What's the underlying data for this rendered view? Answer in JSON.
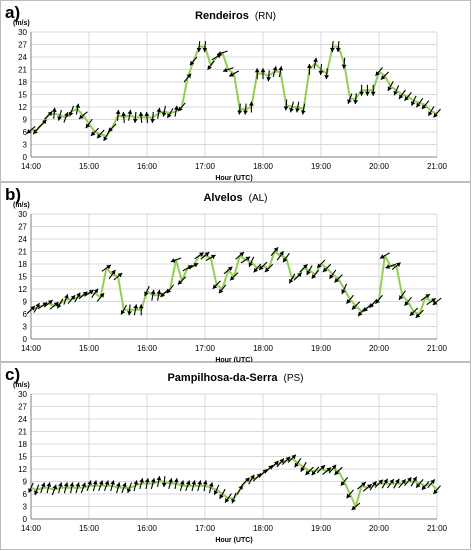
{
  "colors": {
    "line": "#92d050",
    "arrow": "#000000",
    "grid": "#d9d9d9",
    "axis": "#808080"
  },
  "chart_data": [
    {
      "type": "line",
      "panel_label": "a)",
      "title": "Rendeiros",
      "station_code": "(RN)",
      "xlabel": "Hour (UTC)",
      "ylabel": "(m/s)",
      "xlim": [
        14.0,
        21.0
      ],
      "ylim": [
        0,
        30
      ],
      "yticks": [
        0,
        3,
        6,
        9,
        12,
        15,
        18,
        21,
        24,
        27,
        30
      ],
      "xtick_labels": [
        "14:00",
        "15:00",
        "16:00",
        "17:00",
        "18:00",
        "19:00",
        "20:00",
        "21:00"
      ],
      "grid": true,
      "series": [
        {
          "x": [
            14.0,
            14.1,
            14.2,
            14.3,
            14.4,
            14.5,
            14.6,
            14.7,
            14.8,
            14.9,
            15.0,
            15.1,
            15.2,
            15.3,
            15.4,
            15.5,
            15.6,
            15.7,
            15.8,
            15.9,
            16.0,
            16.1,
            16.2,
            16.3,
            16.4,
            16.5,
            16.6,
            16.7,
            16.8,
            16.9,
            17.0,
            17.1,
            17.2,
            17.3,
            17.4,
            17.5,
            17.6,
            17.7,
            17.8,
            17.9,
            18.0,
            18.1,
            18.2,
            18.3,
            18.4,
            18.5,
            18.6,
            18.7,
            18.8,
            18.9,
            19.0,
            19.1,
            19.2,
            19.3,
            19.4,
            19.5,
            19.6,
            19.7,
            19.8,
            19.9,
            20.0,
            20.1,
            20.2,
            20.3,
            20.4,
            20.5,
            20.6,
            20.7,
            20.8,
            20.9,
            21.0
          ],
          "values": [
            6.5,
            6.5,
            8,
            10,
            10.5,
            10,
            9.5,
            11,
            11.5,
            10,
            8,
            6,
            5.5,
            5,
            7,
            10,
            9.5,
            10,
            9.5,
            9.5,
            9.5,
            9.5,
            10.5,
            11,
            10.5,
            11,
            12,
            19,
            23,
            26.5,
            26.5,
            22,
            24,
            25,
            21,
            20,
            11.5,
            11.5,
            12,
            20,
            20,
            19.5,
            20.5,
            20.5,
            12.5,
            12,
            12,
            11.5,
            21,
            22.5,
            21,
            20,
            26.5,
            26.5,
            22.5,
            14,
            14,
            16,
            16,
            16,
            20.5,
            19.5,
            17,
            16,
            15,
            14.5,
            13.5,
            13,
            12.5,
            11,
            10.5
          ],
          "arrow_dir_deg": [
            220,
            230,
            45,
            45,
            85,
            255,
            70,
            250,
            80,
            220,
            235,
            225,
            230,
            240,
            225,
            85,
            95,
            80,
            265,
            95,
            95,
            265,
            80,
            260,
            240,
            80,
            230,
            50,
            230,
            265,
            265,
            235,
            30,
            200,
            200,
            210,
            265,
            265,
            90,
            90,
            90,
            265,
            75,
            80,
            265,
            255,
            260,
            260,
            90,
            80,
            265,
            265,
            265,
            265,
            265,
            250,
            265,
            270,
            270,
            270,
            230,
            225,
            240,
            245,
            235,
            230,
            245,
            235,
            230,
            240,
            230
          ]
        }
      ]
    },
    {
      "type": "line",
      "panel_label": "b)",
      "title": "Alvelos",
      "station_code": "(AL)",
      "xlabel": "Hour (UTC)",
      "ylabel": "(m/s)",
      "xlim": [
        14.0,
        21.0
      ],
      "ylim": [
        0,
        30
      ],
      "yticks": [
        0,
        3,
        6,
        9,
        12,
        15,
        18,
        21,
        24,
        27,
        30
      ],
      "xtick_labels": [
        "14:00",
        "15:00",
        "16:00",
        "17:00",
        "18:00",
        "19:00",
        "20:00",
        "21:00"
      ],
      "grid": true,
      "series": [
        {
          "x": [
            14.0,
            14.1,
            14.2,
            14.3,
            14.4,
            14.5,
            14.6,
            14.7,
            14.8,
            14.9,
            15.0,
            15.1,
            15.2,
            15.3,
            15.4,
            15.5,
            15.6,
            15.7,
            15.8,
            15.9,
            16.0,
            16.1,
            16.2,
            16.3,
            16.4,
            16.5,
            16.6,
            16.7,
            16.8,
            16.9,
            17.0,
            17.1,
            17.2,
            17.3,
            17.4,
            17.5,
            17.6,
            17.7,
            17.8,
            17.9,
            18.0,
            18.1,
            18.2,
            18.3,
            18.4,
            18.5,
            18.6,
            18.7,
            18.8,
            18.9,
            19.0,
            19.1,
            19.2,
            19.3,
            19.4,
            19.5,
            19.6,
            19.7,
            19.8,
            19.9,
            20.0,
            20.1,
            20.2,
            20.3,
            20.4,
            20.5,
            20.6,
            20.7,
            20.8,
            20.9,
            21.0
          ],
          "values": [
            7,
            7.5,
            8,
            8.5,
            8,
            8.5,
            9.5,
            9.5,
            10,
            10.5,
            11,
            11,
            10,
            17,
            15.5,
            15,
            7,
            7,
            7,
            7,
            11.5,
            10.5,
            10.5,
            11,
            12,
            19,
            14,
            17,
            17.5,
            20,
            20,
            19.5,
            13,
            12,
            16.5,
            15,
            20,
            19,
            18.5,
            17,
            17.5,
            17,
            21,
            20,
            19.5,
            14.5,
            15,
            17,
            16.5,
            15.5,
            18,
            17,
            15.5,
            14.5,
            12,
            9.5,
            8,
            6.5,
            7.5,
            8.5,
            9.5,
            20,
            17.5,
            17.5,
            10.5,
            9,
            6.5,
            6,
            10,
            9,
            9
          ],
          "arrow_dir_deg": [
            45,
            60,
            35,
            40,
            40,
            240,
            70,
            50,
            60,
            40,
            35,
            55,
            50,
            35,
            55,
            40,
            240,
            265,
            80,
            90,
            245,
            80,
            80,
            225,
            230,
            200,
            225,
            30,
            30,
            35,
            40,
            30,
            225,
            230,
            40,
            225,
            40,
            35,
            245,
            230,
            225,
            225,
            50,
            55,
            235,
            240,
            45,
            45,
            240,
            230,
            225,
            225,
            235,
            225,
            245,
            230,
            225,
            230,
            225,
            230,
            230,
            210,
            200,
            40,
            235,
            230,
            225,
            225,
            35,
            35,
            220
          ]
        }
      ]
    },
    {
      "type": "line",
      "panel_label": "c)",
      "title": "Pampilhosa-da-Serra",
      "station_code": "(PS)",
      "xlabel": "Hour (UTC)",
      "ylabel": "(m/s)",
      "xlim": [
        14.0,
        21.0
      ],
      "ylim": [
        0,
        30
      ],
      "yticks": [
        0,
        3,
        6,
        9,
        12,
        15,
        18,
        21,
        24,
        27,
        30
      ],
      "xtick_labels": [
        "14:00",
        "15:00",
        "16:00",
        "17:00",
        "18:00",
        "19:00",
        "20:00",
        "21:00"
      ],
      "grid": true,
      "series": [
        {
          "x": [
            14.0,
            14.1,
            14.2,
            14.3,
            14.4,
            14.5,
            14.6,
            14.7,
            14.8,
            14.9,
            15.0,
            15.1,
            15.2,
            15.3,
            15.4,
            15.5,
            15.6,
            15.7,
            15.8,
            15.9,
            16.0,
            16.1,
            16.2,
            16.3,
            16.4,
            16.5,
            16.6,
            16.7,
            16.8,
            16.9,
            17.0,
            17.1,
            17.2,
            17.3,
            17.4,
            17.5,
            17.6,
            17.7,
            17.8,
            17.9,
            18.0,
            18.1,
            18.2,
            18.3,
            18.4,
            18.5,
            18.6,
            18.7,
            18.8,
            18.9,
            19.0,
            19.1,
            19.2,
            19.3,
            19.4,
            19.5,
            19.6,
            19.7,
            19.8,
            19.9,
            20.0,
            20.1,
            20.2,
            20.3,
            20.4,
            20.5,
            20.6,
            20.7,
            20.8,
            20.9,
            21.0
          ],
          "values": [
            7.5,
            7,
            7.5,
            7.5,
            7,
            7.5,
            7.5,
            7.5,
            7.5,
            7.5,
            8,
            8,
            8,
            8,
            8,
            7.5,
            7.5,
            7.5,
            8,
            8.5,
            8.5,
            8.5,
            9,
            9,
            8.5,
            8.5,
            8,
            8,
            8,
            8,
            8,
            7.5,
            7,
            6,
            5,
            5,
            7,
            9,
            9.5,
            10,
            11,
            12,
            13,
            13.5,
            14,
            14.5,
            13.5,
            12.5,
            11.5,
            11.5,
            12,
            11.5,
            12,
            11.5,
            9,
            6,
            3,
            8,
            7.5,
            8,
            8.5,
            8.5,
            8.5,
            8.5,
            8.5,
            9,
            9,
            8.5,
            8,
            8.5,
            7
          ],
          "arrow_dir_deg": [
            245,
            250,
            70,
            75,
            70,
            75,
            75,
            80,
            75,
            70,
            70,
            75,
            70,
            70,
            75,
            75,
            70,
            250,
            75,
            75,
            80,
            75,
            80,
            265,
            75,
            80,
            75,
            70,
            75,
            75,
            80,
            75,
            245,
            240,
            235,
            250,
            60,
            45,
            60,
            45,
            45,
            45,
            45,
            50,
            45,
            45,
            235,
            240,
            225,
            230,
            45,
            40,
            50,
            225,
            230,
            230,
            220,
            40,
            40,
            55,
            45,
            60,
            55,
            60,
            50,
            50,
            60,
            230,
            230,
            50,
            230
          ]
        }
      ]
    }
  ]
}
